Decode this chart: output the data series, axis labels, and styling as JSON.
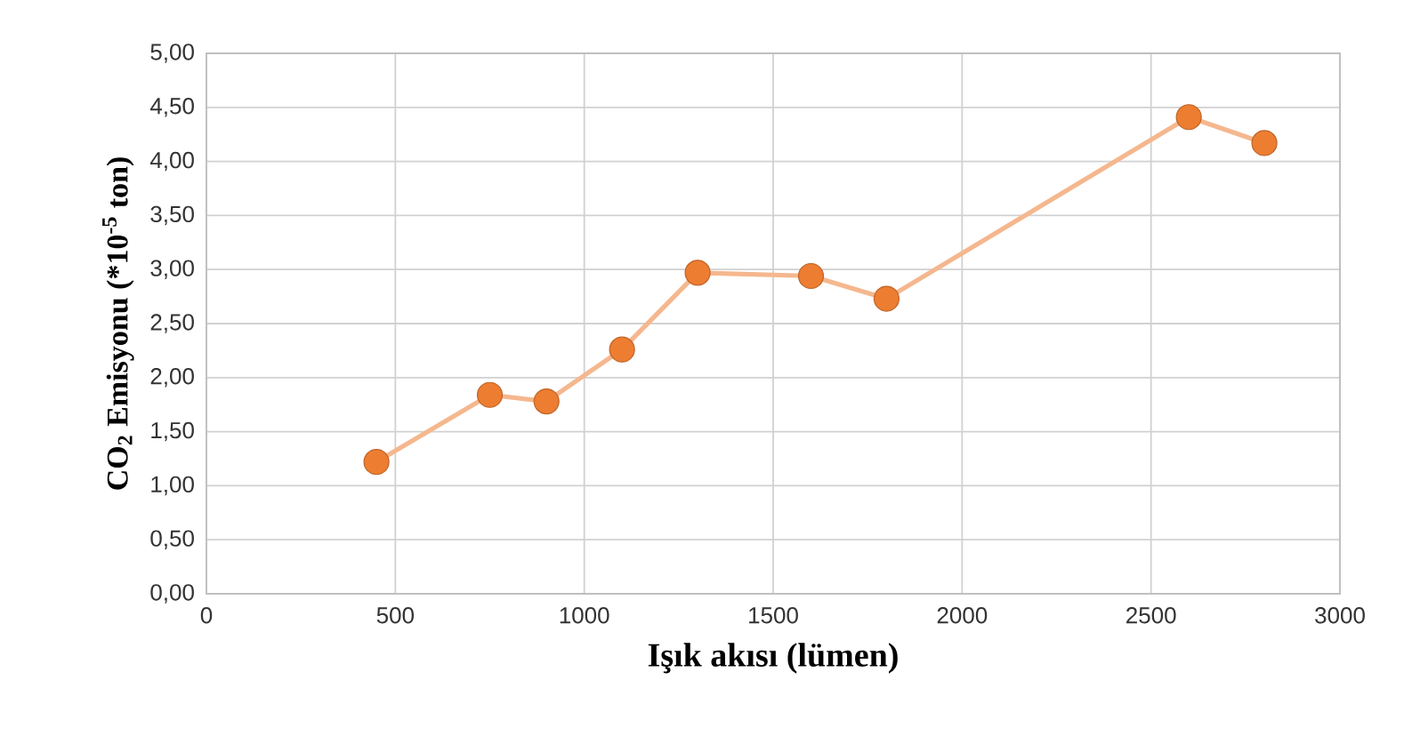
{
  "chart_data": {
    "type": "line",
    "xlabel": "Işık akısı (lümen)",
    "ylabel": "CO$_{2}$ Emisyonu (*10$^{-5}$ ton)",
    "x": [
      450,
      750,
      900,
      1100,
      1300,
      1600,
      1800,
      2600,
      2800
    ],
    "series": [
      {
        "color": "#ed7d31",
        "values": [
          1.22,
          1.84,
          1.78,
          2.26,
          2.97,
          2.94,
          2.73,
          4.41,
          4.17
        ]
      }
    ],
    "xlim": [
      0,
      3000
    ],
    "xticks": [
      0,
      500,
      1000,
      1500,
      2000,
      2500,
      3000
    ],
    "ylim": [
      0,
      5
    ],
    "yticks": [
      {
        "value": 0,
        "label": "0,00"
      },
      {
        "value": 0.5,
        "label": "0,50"
      },
      {
        "value": 1,
        "label": "1,00"
      },
      {
        "value": 1.5,
        "label": "1,50"
      },
      {
        "value": 2,
        "label": "2,00"
      },
      {
        "value": 2.5,
        "label": "2,50"
      },
      {
        "value": 3,
        "label": "3,00"
      },
      {
        "value": 3.5,
        "label": "3,50"
      },
      {
        "value": 4,
        "label": "4,00"
      },
      {
        "value": 4.5,
        "label": "4,50"
      },
      {
        "value": 5,
        "label": "5,00"
      }
    ],
    "grid": true,
    "marker": "circle",
    "line_style": "solid"
  }
}
